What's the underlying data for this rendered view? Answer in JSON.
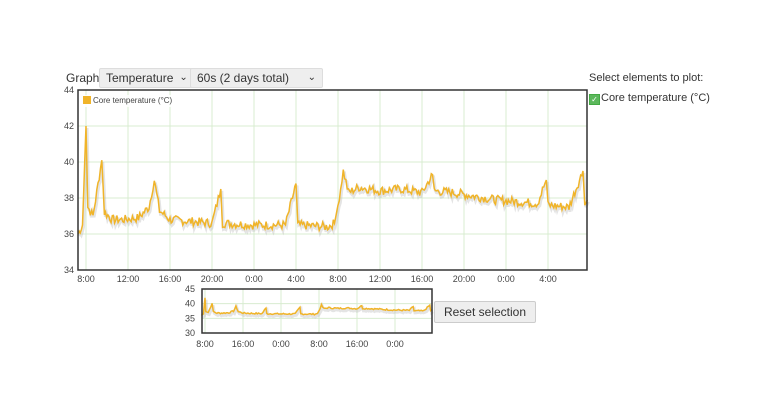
{
  "controls": {
    "graph_label": "Graph:",
    "graph_select": "Temperature",
    "interval_select": "60s (2 days total)",
    "reset_button": "Reset selection"
  },
  "side": {
    "title": "Select elements to plot:",
    "items": [
      {
        "label": "Core temperature (°C)",
        "checked": true
      }
    ]
  },
  "colors": {
    "series": "#f0b429",
    "grid": "#d8ecd0"
  },
  "chart_data": [
    {
      "type": "line",
      "title": "",
      "legend_position": "top-left",
      "grid": true,
      "ylim": [
        34,
        44
      ],
      "yticks": [
        "34",
        "36",
        "38",
        "40",
        "42",
        "44"
      ],
      "xticks": [
        "8:00",
        "12:00",
        "16:00",
        "20:00",
        "0:00",
        "4:00",
        "8:00",
        "12:00",
        "16:00",
        "20:00",
        "0:00",
        "4:00"
      ],
      "series": [
        {
          "name": "Core temperature (°C)",
          "x": [
            "7:15",
            "7:40",
            "8:00",
            "8:10",
            "8:40",
            "9:30",
            "9:45",
            "10:30",
            "11:30",
            "13:00",
            "14:00",
            "14:30",
            "15:00",
            "16:00",
            "18:00",
            "20:00",
            "20:50",
            "21:00",
            "24:00",
            "27:00",
            "28:00",
            "28:10",
            "31:00",
            "31:40",
            "32:00",
            "32:30",
            "33:00",
            "34:00",
            "36:00",
            "38:00",
            "40:00",
            "41:00",
            "41:10",
            "43:00",
            "45:00",
            "47:00",
            "49:00",
            "51:00",
            "51:50",
            "52:00",
            "54:00",
            "55:20",
            "55:30",
            "55:45"
          ],
          "y": [
            36.0,
            36.5,
            42.0,
            37.5,
            37.0,
            40.1,
            37.2,
            36.8,
            36.8,
            36.9,
            37.5,
            39.0,
            37.3,
            36.8,
            36.7,
            36.6,
            38.5,
            36.6,
            36.5,
            36.5,
            38.8,
            36.5,
            36.4,
            36.6,
            37.6,
            39.5,
            38.3,
            38.6,
            38.4,
            38.5,
            38.3,
            39.3,
            38.4,
            38.3,
            38.1,
            37.9,
            37.8,
            37.7,
            39.0,
            37.6,
            37.5,
            39.5,
            37.6,
            37.9
          ]
        }
      ]
    },
    {
      "type": "line",
      "role": "overview",
      "ylim": [
        30,
        45
      ],
      "yticks": [
        "30",
        "35",
        "40",
        "45"
      ],
      "xticks": [
        "8:00",
        "16:00",
        "0:00",
        "8:00",
        "16:00",
        "0:00"
      ]
    }
  ]
}
